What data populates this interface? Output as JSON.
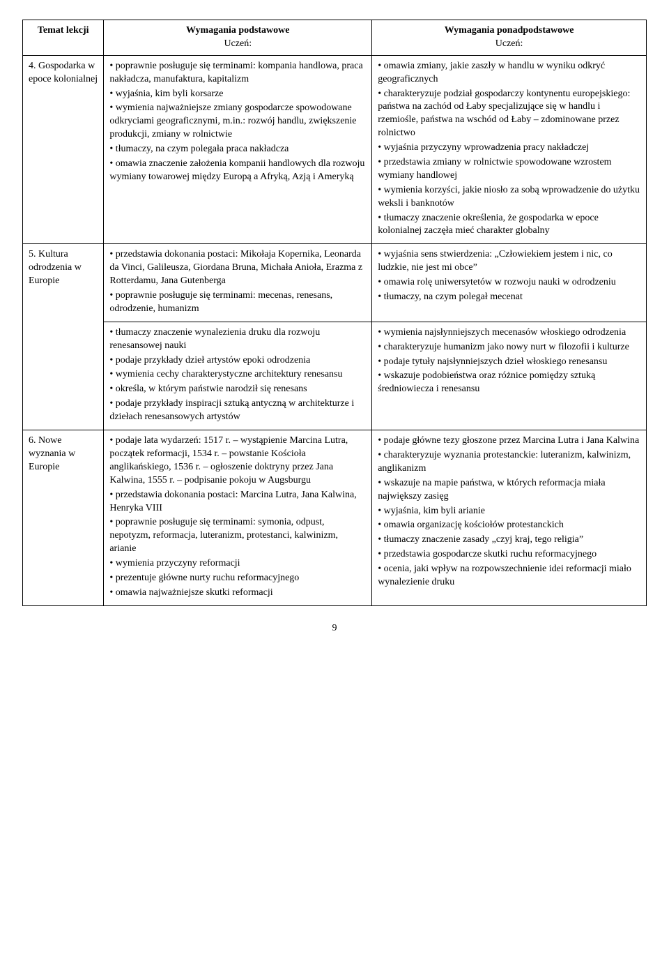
{
  "headers": {
    "col1": "Temat lekcji",
    "col2_line1": "Wymagania podstawowe",
    "col2_line2": "Uczeń:",
    "col3_line1": "Wymagania ponadpodstawowe",
    "col3_line2": "Uczeń:"
  },
  "rows": [
    {
      "topic": "4. Gospodarka w epoce kolonialnej",
      "basic": [
        "poprawnie posługuje się terminami: kompania handlowa, praca nakładcza, manufaktura, kapitalizm",
        "wyjaśnia, kim byli korsarze",
        "wymienia najważniejsze zmiany gospodarcze spowodowane odkryciami geograficznymi, m.in.: rozwój handlu, zwiększenie produkcji, zmiany w rolnictwie",
        "tłumaczy, na czym polegała praca nakładcza",
        "omawia znaczenie założenia kompanii handlowych dla rozwoju wymiany towarowej między Europą a Afryką, Azją i Ameryką"
      ],
      "extended": [
        "omawia zmiany, jakie zaszły w handlu w wyniku odkryć geograficznych",
        "charakteryzuje podział gospodarczy kontynentu europejskiego: państwa na zachód od Łaby specjalizujące się w handlu i rzemiośle, państwa na wschód od Łaby – zdominowane przez rolnictwo",
        "wyjaśnia przyczyny wprowadzenia pracy nakładczej",
        "przedstawia zmiany w rolnictwie spowodowane wzrostem wymiany handlowej",
        "wymienia korzyści, jakie niosło za sobą wprowadzenie do użytku weksli i banknotów",
        "tłumaczy znaczenie określenia, że gospodarka w epoce kolonialnej zaczęła mieć charakter globalny"
      ]
    },
    {
      "topic": "5. Kultura odrodzenia w Europie",
      "basic": [
        "przedstawia dokonania postaci: Mikołaja Kopernika, Leonarda da Vinci, Galileusza, Giordana Bruna, Michała Anioła, Erazma z Rotterdamu, Jana Gutenberga",
        "poprawnie posługuje się terminami: mecenas, renesans, odrodzenie, humanizm"
      ],
      "extended": [
        "wyjaśnia sens stwierdzenia: „Człowiekiem jestem i nic, co ludzkie, nie jest mi obce”",
        "omawia rolę uniwersytetów w rozwoju nauki w odrodzeniu",
        "tłumaczy, na czym polegał mecenat"
      ]
    },
    {
      "topic": "",
      "basic": [
        "tłumaczy znaczenie wynalezienia druku dla rozwoju renesansowej nauki",
        "podaje przykłady dzieł artystów epoki odrodzenia",
        "wymienia cechy charakterystyczne architektury renesansu",
        "określa, w którym państwie narodził się renesans",
        "podaje przykłady inspiracji sztuką antyczną w architekturze i dziełach renesansowych artystów"
      ],
      "extended": [
        "wymienia najsłynniejszych mecenasów włoskiego odrodzenia",
        "charakteryzuje humanizm jako nowy nurt w filozofii i kulturze",
        "podaje tytuły najsłynniejszych dzieł włoskiego renesansu",
        "wskazuje podobieństwa oraz różnice pomiędzy sztuką średniowiecza i renesansu"
      ]
    },
    {
      "topic": "6. Nowe wyznania w Europie",
      "basic": [
        "podaje lata wydarzeń: 1517 r. – wystąpienie Marcina Lutra, początek reformacji, 1534 r. – powstanie Kościoła anglikańskiego, 1536 r. – ogłoszenie doktryny przez Jana Kalwina, 1555 r. – podpisanie pokoju w Augsburgu",
        "przedstawia dokonania postaci: Marcina Lutra, Jana Kalwina, Henryka VIII",
        "poprawnie posługuje się terminami: symonia, odpust, nepotyzm, reformacja, luteranizm, protestanci, kalwinizm, arianie",
        "wymienia przyczyny reformacji",
        "prezentuje główne nurty ruchu reformacyjnego",
        "omawia najważniejsze skutki reformacji"
      ],
      "extended": [
        "podaje główne tezy głoszone przez Marcina Lutra i Jana Kalwina",
        "charakteryzuje wyznania protestanckie: luteranizm, kalwinizm, anglikanizm",
        "wskazuje na mapie państwa, w których reformacja miała największy zasięg",
        "wyjaśnia, kim byli arianie",
        "omawia organizację kościołów protestanckich",
        "tłumaczy znaczenie zasady „czyj kraj, tego religia”",
        "przedstawia gospodarcze skutki ruchu reformacyjnego",
        "ocenia, jaki wpływ na rozpowszechnienie idei reformacji miało wynalezienie druku"
      ]
    }
  ],
  "page_number": "9"
}
